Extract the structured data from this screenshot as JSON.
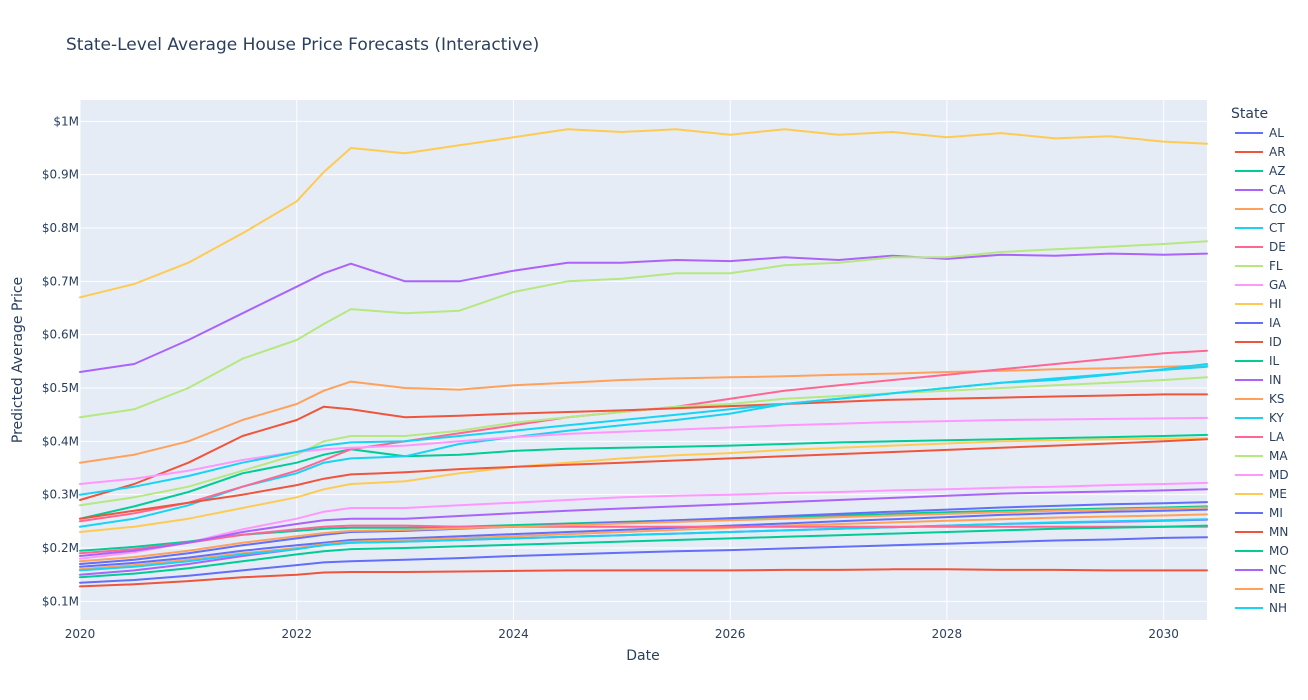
{
  "chart_data": {
    "type": "line",
    "title": "State-Level Average House Price Forecasts (Interactive)",
    "xlabel": "Date",
    "ylabel": "Predicted Average Price",
    "legend_title": "State",
    "legend_placement": "right",
    "grid": true,
    "xlim": [
      2020.0,
      2030.4
    ],
    "ylim": [
      65000,
      1040000
    ],
    "x_ticks": [
      {
        "value": 2020,
        "label": "2020"
      },
      {
        "value": 2022,
        "label": "2022"
      },
      {
        "value": 2024,
        "label": "2024"
      },
      {
        "value": 2026,
        "label": "2026"
      },
      {
        "value": 2028,
        "label": "2028"
      },
      {
        "value": 2030,
        "label": "2030"
      }
    ],
    "y_ticks": [
      {
        "value": 100000,
        "label": "$0.1M"
      },
      {
        "value": 200000,
        "label": "$0.2M"
      },
      {
        "value": 300000,
        "label": "$0.3M"
      },
      {
        "value": 400000,
        "label": "$0.4M"
      },
      {
        "value": 500000,
        "label": "$0.5M"
      },
      {
        "value": 600000,
        "label": "$0.6M"
      },
      {
        "value": 700000,
        "label": "$0.7M"
      },
      {
        "value": 800000,
        "label": "$0.8M"
      },
      {
        "value": 900000,
        "label": "$0.9M"
      },
      {
        "value": 1000000,
        "label": "$1M"
      }
    ],
    "x": [
      2020,
      2020.5,
      2021,
      2021.5,
      2022,
      2022.25,
      2022.5,
      2023,
      2023.5,
      2024,
      2024.5,
      2025,
      2025.5,
      2026,
      2026.5,
      2027,
      2027.5,
      2028,
      2028.5,
      2029,
      2029.5,
      2030,
      2030.4
    ],
    "series": [
      {
        "name": "AL",
        "color": "#636efa",
        "values": [
          135000,
          140000,
          148000,
          158000,
          168000,
          173000,
          175000,
          178000,
          181000,
          185000,
          188000,
          191000,
          194000,
          196000,
          199000,
          202000,
          205000,
          208000,
          211000,
          214000,
          216000,
          219000,
          220000
        ]
      },
      {
        "name": "AR",
        "color": "#EF553B",
        "values": [
          128000,
          132000,
          138000,
          145000,
          150000,
          154000,
          155000,
          155000,
          156000,
          157000,
          158000,
          158000,
          158000,
          158000,
          159000,
          159000,
          160000,
          160000,
          159000,
          159000,
          158000,
          158000,
          158000
        ]
      },
      {
        "name": "AZ",
        "color": "#00cc96",
        "values": [
          255000,
          278000,
          305000,
          340000,
          360000,
          375000,
          385000,
          372000,
          375000,
          382000,
          386000,
          388000,
          390000,
          392000,
          395000,
          398000,
          400000,
          402000,
          404000,
          406000,
          408000,
          410000,
          412000
        ]
      },
      {
        "name": "CA",
        "color": "#ab63fa",
        "values": [
          530000,
          545000,
          590000,
          640000,
          690000,
          715000,
          733000,
          700000,
          700000,
          720000,
          735000,
          735000,
          740000,
          738000,
          745000,
          740000,
          748000,
          742000,
          750000,
          748000,
          752000,
          750000,
          752000
        ]
      },
      {
        "name": "CO",
        "color": "#FFA15A",
        "values": [
          360000,
          375000,
          400000,
          440000,
          470000,
          495000,
          512000,
          500000,
          497000,
          505000,
          510000,
          515000,
          518000,
          520000,
          522000,
          525000,
          527000,
          530000,
          532000,
          535000,
          537000,
          540000,
          542000
        ]
      },
      {
        "name": "CT",
        "color": "#19d3f3",
        "values": [
          240000,
          255000,
          280000,
          315000,
          340000,
          360000,
          368000,
          372000,
          395000,
          408000,
          420000,
          430000,
          440000,
          452000,
          470000,
          480000,
          490000,
          500000,
          510000,
          515000,
          525000,
          535000,
          545000
        ]
      },
      {
        "name": "DE",
        "color": "#FF6692",
        "values": [
          250000,
          265000,
          285000,
          315000,
          345000,
          365000,
          385000,
          400000,
          415000,
          430000,
          445000,
          455000,
          465000,
          480000,
          495000,
          505000,
          515000,
          525000,
          535000,
          545000,
          555000,
          565000,
          570000
        ]
      },
      {
        "name": "FL",
        "color": "#B6E880",
        "values": [
          280000,
          295000,
          315000,
          345000,
          375000,
          400000,
          410000,
          410000,
          420000,
          435000,
          445000,
          455000,
          465000,
          470000,
          480000,
          485000,
          490000,
          495000,
          500000,
          505000,
          510000,
          515000,
          520000
        ]
      },
      {
        "name": "GA",
        "color": "#FF97FF",
        "values": [
          180000,
          192000,
          210000,
          235000,
          255000,
          268000,
          275000,
          275000,
          280000,
          285000,
          290000,
          295000,
          298000,
          300000,
          303000,
          305000,
          308000,
          310000,
          313000,
          315000,
          318000,
          320000,
          322000
        ]
      },
      {
        "name": "HI",
        "color": "#FECB52",
        "values": [
          670000,
          695000,
          735000,
          790000,
          850000,
          905000,
          950000,
          940000,
          955000,
          970000,
          985000,
          980000,
          985000,
          975000,
          985000,
          975000,
          980000,
          970000,
          978000,
          968000,
          972000,
          962000,
          958000
        ]
      },
      {
        "name": "IA",
        "color": "#636efa",
        "values": [
          165000,
          172000,
          182000,
          195000,
          205000,
          210000,
          215000,
          218000,
          222000,
          226000,
          230000,
          234000,
          238000,
          242000,
          246000,
          250000,
          254000,
          258000,
          262000,
          265000,
          268000,
          270000,
          272000
        ]
      },
      {
        "name": "ID",
        "color": "#EF553B",
        "values": [
          290000,
          320000,
          360000,
          410000,
          440000,
          465000,
          460000,
          445000,
          448000,
          452000,
          455000,
          458000,
          462000,
          466000,
          470000,
          474000,
          478000,
          480000,
          482000,
          484000,
          486000,
          488000,
          488000
        ]
      },
      {
        "name": "IL",
        "color": "#00cc96",
        "values": [
          195000,
          202000,
          212000,
          225000,
          232000,
          236000,
          238000,
          238000,
          240000,
          243000,
          246000,
          249000,
          252000,
          255000,
          258000,
          261000,
          264000,
          267000,
          270000,
          272000,
          274000,
          276000,
          278000
        ]
      },
      {
        "name": "IN",
        "color": "#ab63fa",
        "values": [
          150000,
          158000,
          170000,
          185000,
          198000,
          206000,
          210000,
          212000,
          215000,
          218000,
          221000,
          224000,
          227000,
          230000,
          233000,
          236000,
          239000,
          242000,
          245000,
          247000,
          249000,
          251000,
          253000
        ]
      },
      {
        "name": "KS",
        "color": "#FFA15A",
        "values": [
          160000,
          168000,
          178000,
          190000,
          200000,
          207000,
          212000,
          215000,
          218000,
          222000,
          226000,
          230000,
          234000,
          238000,
          242000,
          245000,
          248000,
          251000,
          254000,
          257000,
          259000,
          261000,
          263000
        ]
      },
      {
        "name": "KY",
        "color": "#19d3f3",
        "values": [
          158000,
          165000,
          175000,
          188000,
          198000,
          205000,
          210000,
          212000,
          215000,
          218000,
          221000,
          224000,
          227000,
          230000,
          233000,
          236000,
          239000,
          242000,
          245000,
          248000,
          250000,
          252000,
          254000
        ]
      },
      {
        "name": "LA",
        "color": "#FF6692",
        "values": [
          190000,
          198000,
          210000,
          225000,
          235000,
          240000,
          242000,
          242000,
          240000,
          240000,
          240000,
          240000,
          240000,
          240000,
          240000,
          240000,
          240000,
          240000,
          240000,
          240000,
          240000,
          240000,
          240000
        ]
      },
      {
        "name": "MA",
        "color": "#B6E880",
        "values": [
          445000,
          460000,
          500000,
          555000,
          590000,
          620000,
          648000,
          640000,
          645000,
          680000,
          700000,
          705000,
          715000,
          715000,
          730000,
          735000,
          745000,
          745000,
          755000,
          760000,
          765000,
          770000,
          775000
        ]
      },
      {
        "name": "MD",
        "color": "#FF97FF",
        "values": [
          320000,
          330000,
          345000,
          365000,
          380000,
          385000,
          388000,
          392000,
          400000,
          408000,
          414000,
          418000,
          422000,
          426000,
          430000,
          433000,
          436000,
          438000,
          440000,
          441000,
          442000,
          443000,
          444000
        ]
      },
      {
        "name": "ME",
        "color": "#FECB52",
        "values": [
          230000,
          240000,
          255000,
          275000,
          295000,
          310000,
          320000,
          325000,
          340000,
          352000,
          360000,
          368000,
          374000,
          378000,
          384000,
          388000,
          392000,
          396000,
          400000,
          402000,
          404000,
          405000,
          406000
        ]
      },
      {
        "name": "MI",
        "color": "#636efa",
        "values": [
          170000,
          178000,
          190000,
          205000,
          218000,
          225000,
          230000,
          232000,
          236000,
          240000,
          244000,
          248000,
          252000,
          256000,
          260000,
          264000,
          268000,
          272000,
          276000,
          279000,
          282000,
          284000,
          286000
        ]
      },
      {
        "name": "MN",
        "color": "#EF553B",
        "values": [
          255000,
          270000,
          285000,
          300000,
          318000,
          330000,
          338000,
          342000,
          348000,
          352000,
          356000,
          360000,
          364000,
          368000,
          372000,
          376000,
          380000,
          384000,
          388000,
          392000,
          396000,
          400000,
          404000
        ]
      },
      {
        "name": "MO",
        "color": "#00cc96",
        "values": [
          145000,
          152000,
          162000,
          175000,
          188000,
          194000,
          198000,
          200000,
          203000,
          206000,
          209000,
          212000,
          215000,
          218000,
          221000,
          224000,
          227000,
          230000,
          233000,
          236000,
          238000,
          240000,
          242000
        ]
      },
      {
        "name": "NC",
        "color": "#ab63fa",
        "values": [
          185000,
          195000,
          210000,
          230000,
          245000,
          252000,
          255000,
          255000,
          260000,
          265000,
          270000,
          274000,
          278000,
          282000,
          286000,
          290000,
          294000,
          298000,
          302000,
          304000,
          306000,
          308000,
          310000
        ]
      },
      {
        "name": "NE",
        "color": "#FFA15A",
        "values": [
          175000,
          183000,
          195000,
          210000,
          222000,
          228000,
          232000,
          234000,
          237000,
          240000,
          243000,
          246000,
          249000,
          252000,
          255000,
          258000,
          261000,
          264000,
          267000,
          270000,
          272000,
          274000,
          276000
        ]
      },
      {
        "name": "NH",
        "color": "#19d3f3",
        "values": [
          300000,
          315000,
          335000,
          360000,
          380000,
          392000,
          398000,
          400000,
          410000,
          420000,
          430000,
          440000,
          450000,
          460000,
          470000,
          480000,
          490000,
          500000,
          510000,
          518000,
          526000,
          534000,
          540000
        ]
      }
    ]
  }
}
